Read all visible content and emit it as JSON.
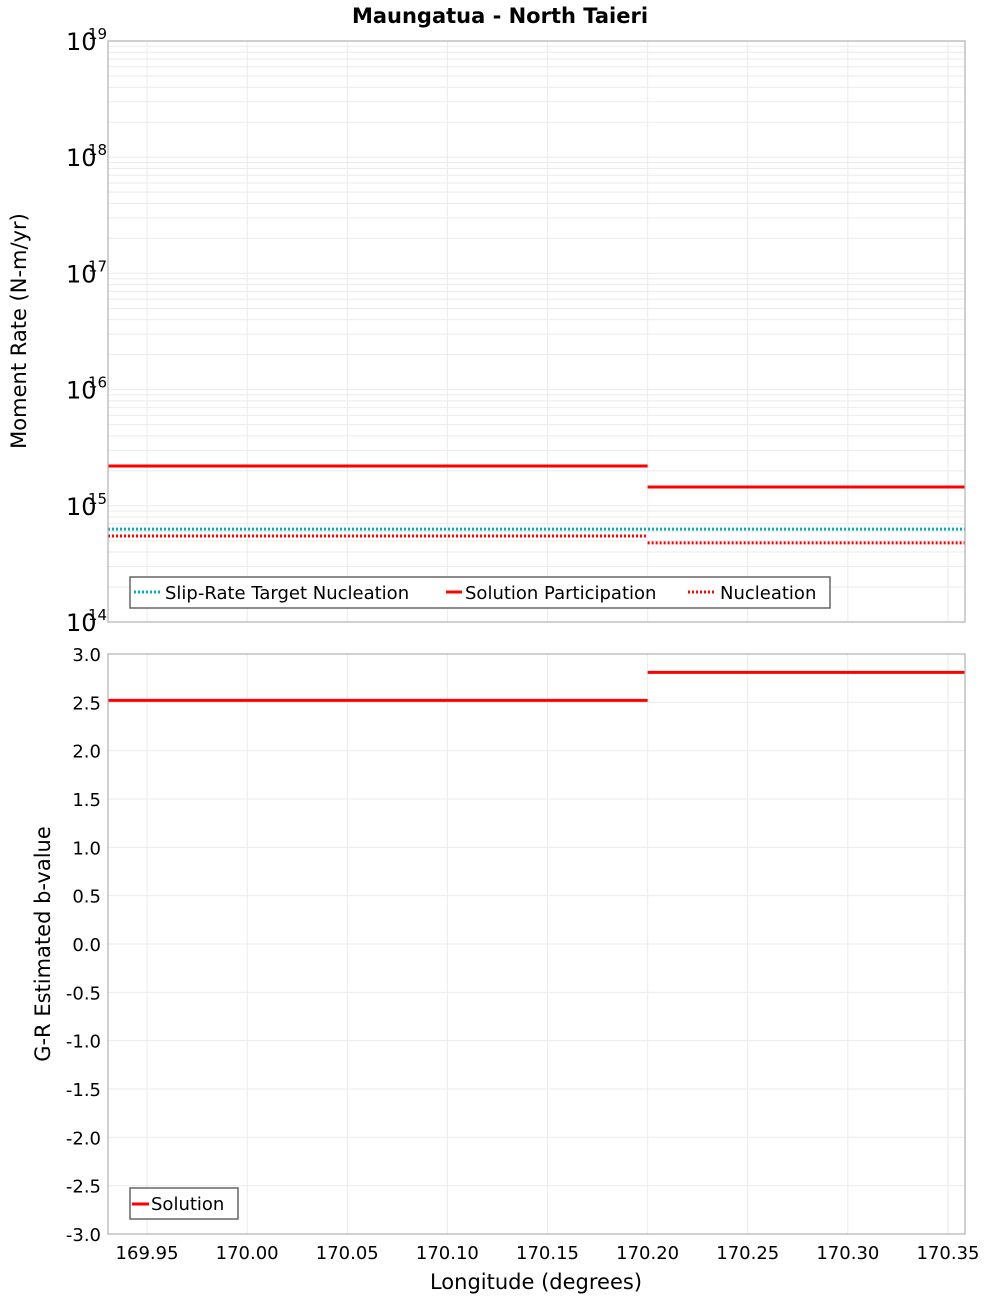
{
  "title": "Maungatua - North Taieri",
  "x_axis": {
    "label": "Longitude (degrees)",
    "range": [
      169.9305,
      170.3585
    ],
    "ticks": [
      "169.95",
      "170.00",
      "170.05",
      "170.10",
      "170.15",
      "170.20",
      "170.25",
      "170.30",
      "170.35"
    ]
  },
  "top_panel": {
    "y_label": "Moment Rate (N-m/yr)",
    "y_scale": "log",
    "y_range": [
      100000000000000.0,
      1e+19
    ],
    "y_ticks": [
      {
        "base": "10",
        "exp": "19"
      },
      {
        "base": "10",
        "exp": "18"
      },
      {
        "base": "10",
        "exp": "17"
      },
      {
        "base": "10",
        "exp": "16"
      },
      {
        "base": "10",
        "exp": "15"
      },
      {
        "base": "10",
        "exp": "14"
      }
    ],
    "legend": [
      {
        "label": "Slip-Rate Target Nucleation",
        "color": "#00b2b2",
        "style": "dotted"
      },
      {
        "label": "Solution Participation",
        "color": "#ff0000",
        "style": "solid"
      },
      {
        "label": "Nucleation",
        "color": "#ff0000",
        "style": "dotted"
      }
    ]
  },
  "bottom_panel": {
    "y_label": "G-R Estimated b-value",
    "y_range": [
      -3.0,
      3.0
    ],
    "y_ticks": [
      "3.0",
      "2.5",
      "2.0",
      "1.5",
      "1.0",
      "0.5",
      "0.0",
      "-0.5",
      "-1.0",
      "-1.5",
      "-2.0",
      "-2.5",
      "-3.0"
    ],
    "legend": [
      {
        "label": "Solution",
        "color": "#ff0000",
        "style": "solid"
      }
    ]
  },
  "chart_data": [
    {
      "type": "line",
      "title": "Maungatua - North Taieri",
      "xlabel": "Longitude (degrees)",
      "ylabel": "Moment Rate (N-m/yr)",
      "yscale": "log",
      "xlim": [
        169.9305,
        170.3585
      ],
      "ylim": [
        100000000000000.0,
        1e+19
      ],
      "grid": true,
      "legend_position": "lower-left",
      "series": [
        {
          "name": "Slip-Rate Target Nucleation",
          "color": "#00b2b2",
          "style": "dotted",
          "x": [
            169.9305,
            170.2,
            170.3585
          ],
          "y": [
            630000000000000.0,
            630000000000000.0,
            630000000000000.0
          ]
        },
        {
          "name": "Solution Participation",
          "color": "#ff0000",
          "style": "solid",
          "segments": [
            {
              "x": [
                169.9305,
                170.2
              ],
              "y": 2200000000000000.0
            },
            {
              "x": [
                170.2,
                170.3585
              ],
              "y": 1450000000000000.0
            }
          ]
        },
        {
          "name": "Nucleation",
          "color": "#ff0000",
          "style": "dotted",
          "segments": [
            {
              "x": [
                169.9305,
                170.2
              ],
              "y": 550000000000000.0
            },
            {
              "x": [
                170.2,
                170.3585
              ],
              "y": 480000000000000.0
            }
          ]
        }
      ]
    },
    {
      "type": "line",
      "xlabel": "Longitude (degrees)",
      "ylabel": "G-R Estimated b-value",
      "xlim": [
        169.9305,
        170.3585
      ],
      "ylim": [
        -3.0,
        3.0
      ],
      "grid": true,
      "legend_position": "lower-left",
      "series": [
        {
          "name": "Solution",
          "color": "#ff0000",
          "style": "solid",
          "segments": [
            {
              "x": [
                169.9305,
                170.2
              ],
              "y": 2.52
            },
            {
              "x": [
                170.2,
                170.3585
              ],
              "y": 2.81
            }
          ]
        }
      ]
    }
  ]
}
